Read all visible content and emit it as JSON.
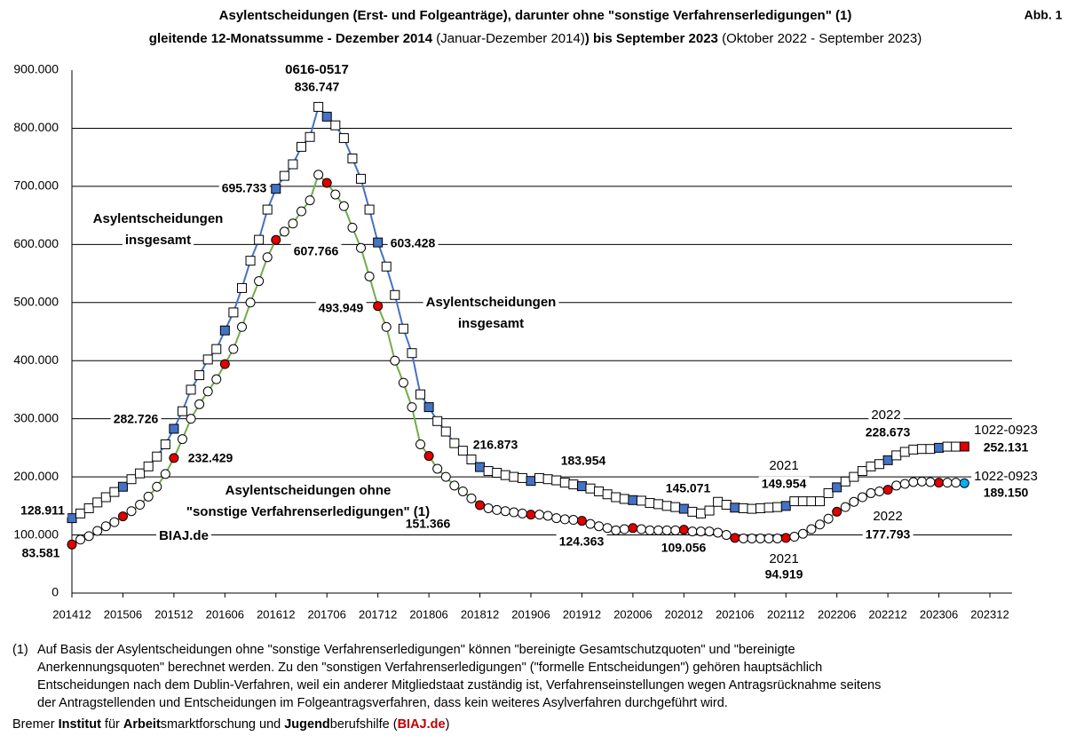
{
  "chart_data": {
    "type": "line",
    "title": "Asylentscheidungen (Erst- und Folgeanträge), darunter ohne \"sonstige Verfahrenserledigungen\" (1)",
    "figure_label": "Abb. 1",
    "subtitle": [
      {
        "text": "gleitende 12-Monatssumme - Dezember 2014",
        "bold": true
      },
      {
        "text": " (Januar-Dezember 2014)",
        "bold": false
      },
      {
        "text": ") bis September 2023",
        "bold": true
      },
      {
        "text": " (Oktober 2022 - September 2023)",
        "bold": false
      }
    ],
    "categories": [
      "201412",
      null,
      null,
      null,
      null,
      null,
      "201506",
      null,
      null,
      null,
      null,
      null,
      "201512",
      null,
      null,
      null,
      null,
      null,
      "201606",
      null,
      null,
      null,
      null,
      null,
      "201612",
      null,
      null,
      null,
      null,
      null,
      "201706",
      null,
      null,
      null,
      null,
      null,
      "201712",
      null,
      null,
      null,
      null,
      null,
      "201806",
      null,
      null,
      null,
      null,
      null,
      "201812",
      null,
      null,
      null,
      null,
      null,
      "201906",
      null,
      null,
      null,
      null,
      null,
      "201912",
      null,
      null,
      null,
      null,
      null,
      "202006",
      null,
      null,
      null,
      null,
      null,
      "202012",
      null,
      null,
      null,
      null,
      null,
      "202106",
      null,
      null,
      null,
      null,
      null,
      "202112",
      null,
      null,
      null,
      null,
      null,
      "202206",
      null,
      null,
      null,
      null,
      null,
      "202212",
      null,
      null,
      null,
      null,
      null,
      "202306",
      null,
      null,
      null,
      null,
      null,
      "202312"
    ],
    "ylim": [
      0,
      900000
    ],
    "yticks": [
      0,
      {
        "value": 100000,
        "label": "100.000"
      },
      {
        "value": 200000,
        "label": "200.000"
      },
      {
        "value": 300000,
        "label": "300.000"
      },
      {
        "value": 400000,
        "label": "400.000"
      },
      {
        "value": 500000,
        "label": "500.000"
      },
      {
        "value": 600000,
        "label": "600.000"
      },
      {
        "value": 700000,
        "label": "700.000"
      },
      {
        "value": 800000,
        "label": "800.000"
      },
      {
        "value": 900000,
        "label": "900.000"
      }
    ],
    "grid": true,
    "series": [
      {
        "name": "Asylentscheidungen insgesamt",
        "color": "#4472c4",
        "marker": "square",
        "marker_fill": "#ffffff",
        "highlight_color": "#4472c4",
        "end_color": "#e00000",
        "values": [
          128911,
          137000,
          146000,
          156000,
          165000,
          174000,
          183000,
          196000,
          206000,
          218000,
          235000,
          256000,
          282726,
          313000,
          350000,
          375000,
          402000,
          420000,
          452000,
          483000,
          525000,
          572000,
          608000,
          660000,
          695733,
          718000,
          738000,
          768000,
          785000,
          836747,
          820000,
          805000,
          783000,
          748000,
          713000,
          660000,
          603428,
          562000,
          513000,
          455000,
          413000,
          342000,
          320000,
          296000,
          278000,
          258000,
          245000,
          230000,
          216873,
          210000,
          207000,
          203000,
          200000,
          198000,
          193000,
          198000,
          196000,
          194000,
          190000,
          187000,
          183954,
          180000,
          175000,
          170000,
          165000,
          162000,
          160000,
          159000,
          155000,
          153000,
          150000,
          148000,
          145071,
          140000,
          137000,
          142000,
          157000,
          152000,
          147000,
          146000,
          145000,
          146000,
          147000,
          148000,
          149954,
          158000,
          158000,
          158000,
          158000,
          172000,
          182000,
          192000,
          200000,
          210000,
          218000,
          222000,
          228673,
          237000,
          243000,
          247000,
          248000,
          248000,
          250000,
          252000,
          252000,
          252131,
          null,
          null,
          null
        ],
        "value_labels": [
          "128.911",
          null,
          null,
          null,
          null,
          null,
          null,
          null,
          null,
          null,
          null,
          null,
          "282.726",
          null,
          null,
          null,
          null,
          null,
          null,
          null,
          null,
          null,
          null,
          null,
          "695.733",
          null,
          null,
          null,
          null,
          "836.747",
          null,
          null,
          null,
          null,
          null,
          null,
          "603.428",
          null,
          null,
          null,
          null,
          null,
          null,
          null,
          null,
          null,
          null,
          null,
          "216.873",
          null,
          null,
          null,
          null,
          null,
          null,
          null,
          null,
          null,
          null,
          null,
          "183.954",
          null,
          null,
          null,
          null,
          null,
          null,
          null,
          null,
          null,
          null,
          null,
          "145.071",
          null,
          null,
          null,
          null,
          null,
          null,
          null,
          null,
          null,
          null,
          null,
          "149.954",
          null,
          null,
          null,
          null,
          null,
          null,
          null,
          null,
          null,
          null,
          null,
          "228.673",
          null,
          null,
          null,
          null,
          null,
          null,
          null,
          null,
          "252.131",
          null,
          null,
          null
        ]
      },
      {
        "name": "Asylentscheidungen ohne \"sonstige Verfahrenserledigungen\" (1)",
        "color": "#70ad47",
        "marker": "circle",
        "marker_fill": "#ffffff",
        "highlight_color": "#e00000",
        "end_color": "#00b0f0",
        "values": [
          83581,
          92000,
          98000,
          107000,
          115000,
          122000,
          132000,
          141000,
          152000,
          166000,
          183000,
          205000,
          232429,
          265000,
          300000,
          325000,
          347000,
          368000,
          394000,
          420000,
          458000,
          500000,
          537000,
          578000,
          607766,
          622000,
          636000,
          657000,
          676000,
          720000,
          706000,
          686000,
          666000,
          629000,
          594000,
          545000,
          493949,
          458000,
          400000,
          362000,
          320000,
          256000,
          236000,
          214000,
          200000,
          185000,
          175000,
          163000,
          151366,
          146000,
          143000,
          141000,
          139000,
          137000,
          135000,
          135000,
          133000,
          129000,
          127000,
          126000,
          124363,
          119000,
          115000,
          112000,
          108000,
          110000,
          112000,
          110000,
          108000,
          108000,
          108000,
          108000,
          109056,
          106000,
          106000,
          106000,
          104000,
          100000,
          95000,
          94000,
          94000,
          94000,
          94000,
          94000,
          94919,
          97000,
          102000,
          110000,
          118000,
          128000,
          140000,
          148000,
          157000,
          165000,
          172000,
          175000,
          177793,
          185000,
          188000,
          191000,
          192000,
          191000,
          190000,
          190000,
          190000,
          189150,
          null,
          null,
          null
        ],
        "value_labels": [
          "83.581",
          null,
          null,
          null,
          null,
          null,
          null,
          null,
          null,
          null,
          null,
          null,
          "232.429",
          null,
          null,
          null,
          null,
          null,
          null,
          null,
          null,
          null,
          null,
          null,
          "607.766",
          null,
          null,
          null,
          null,
          null,
          null,
          null,
          null,
          null,
          null,
          null,
          "493.949",
          null,
          null,
          null,
          null,
          null,
          null,
          null,
          null,
          null,
          null,
          null,
          "151.366",
          null,
          null,
          null,
          null,
          null,
          null,
          null,
          null,
          null,
          null,
          null,
          "124.363",
          null,
          null,
          null,
          null,
          null,
          null,
          null,
          null,
          null,
          null,
          null,
          "109.056",
          null,
          null,
          null,
          null,
          null,
          null,
          null,
          null,
          null,
          null,
          null,
          "94.919",
          null,
          null,
          null,
          null,
          null,
          null,
          null,
          null,
          null,
          null,
          null,
          "177.793",
          null,
          null,
          null,
          null,
          null,
          null,
          null,
          null,
          "189.150",
          null,
          null,
          null
        ]
      }
    ],
    "annotations": [
      {
        "lines": [
          "0616-0517"
        ],
        "bold": true
      },
      {
        "lines": [
          "1022-0923"
        ],
        "bold": false
      },
      {
        "lines": [
          "1022-0923"
        ],
        "bold": false
      },
      {
        "lines": [
          "2021"
        ],
        "bold": false
      },
      {
        "lines": [
          "2021"
        ],
        "bold": false
      },
      {
        "lines": [
          "2022"
        ],
        "bold": false
      },
      {
        "lines": [
          "2022"
        ],
        "bold": false
      },
      {
        "lines": [
          "Asylentscheidungen",
          "insgesamt"
        ],
        "bold": true
      },
      {
        "lines": [
          "Asylentscheidungen",
          "insgesamt"
        ],
        "bold": true
      },
      {
        "lines": [
          "Asylentscheidungen ohne",
          "\"sonstige Verfahrenserledigungen\" (1)"
        ],
        "bold": true
      },
      {
        "lines": [
          "BIAJ.de"
        ],
        "bold": true,
        "color": "#c00000"
      }
    ],
    "footnote": {
      "marker": "(1)",
      "lines": [
        "Auf Basis der Asylentscheidungen ohne \"sonstige Verfahrenserledigungen\" können \"bereinigte Gesamtschutzquoten\" und \"bereinigte",
        "Anerkennungsquoten\" berechnet werden. Zu den \"sonstigen Verfahrenserledigungen\" (\"formelle Entscheidungen\") gehören hauptsächlich",
        "Entscheidungen nach dem Dublin-Verfahren, weil ein anderer Mitgliedstaat  zuständig ist, Verfahrenseinstellungen wegen Antragsrücknahme seitens",
        "der Antragstellenden und Entscheidungen im Folgeantragsverfahren, dass kein weiteres Asylverfahren durchgeführt wird."
      ]
    },
    "source": [
      {
        "text": "Bremer ",
        "bold": false
      },
      {
        "text": "Institut",
        "bold": true
      },
      {
        "text": " für ",
        "bold": false
      },
      {
        "text": "Arbeit",
        "bold": true
      },
      {
        "text": "smarktforschung und ",
        "bold": false
      },
      {
        "text": "Jugend",
        "bold": true
      },
      {
        "text": "berufshilfe (",
        "bold": false
      },
      {
        "text": "BIAJ.de",
        "bold": true,
        "color": "#c00000"
      },
      {
        "text": ")",
        "bold": false
      }
    ]
  }
}
